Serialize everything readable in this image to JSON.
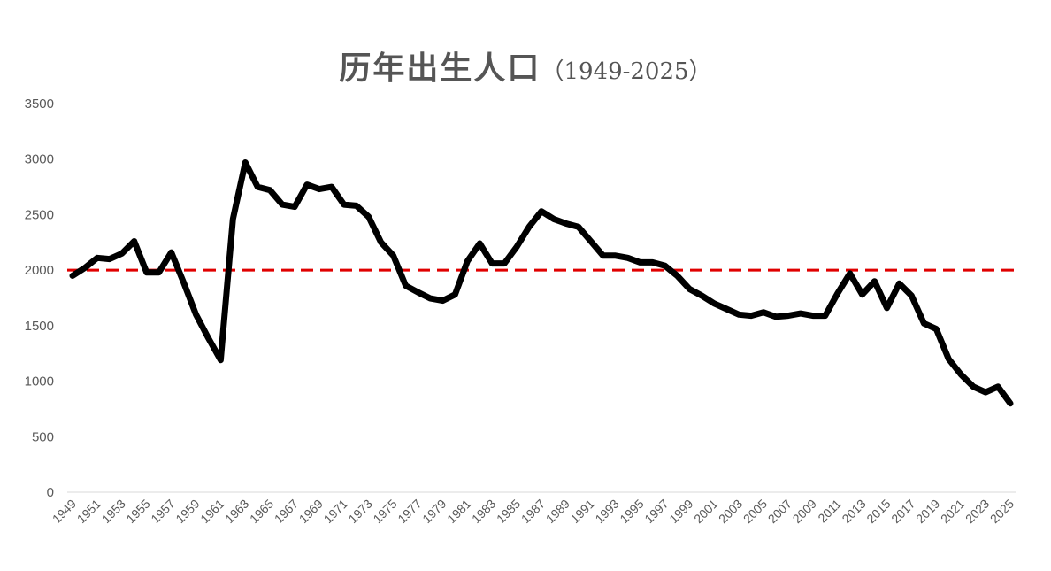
{
  "chart_data": {
    "type": "line",
    "title": "历年出生人口",
    "subtitle": "（1949-2025）",
    "xlabel": "",
    "ylabel": "",
    "ylim": [
      0,
      3500
    ],
    "yticks": [
      0,
      500,
      1000,
      1500,
      2000,
      2500,
      3000,
      3500
    ],
    "xticks": [
      "1949",
      "1951",
      "1953",
      "1955",
      "1957",
      "1959",
      "1961",
      "1963",
      "1965",
      "1967",
      "1969",
      "1971",
      "1973",
      "1975",
      "1977",
      "1979",
      "1981",
      "1983",
      "1985",
      "1987",
      "1989",
      "1991",
      "1993",
      "1995",
      "1997",
      "1999",
      "2001",
      "2003",
      "2005",
      "2007",
      "2009",
      "2011",
      "2013",
      "2015",
      "2017",
      "2019",
      "2021",
      "2023",
      "2025"
    ],
    "x": [
      1949,
      1950,
      1951,
      1952,
      1953,
      1954,
      1955,
      1956,
      1957,
      1958,
      1959,
      1960,
      1961,
      1962,
      1963,
      1964,
      1965,
      1966,
      1967,
      1968,
      1969,
      1970,
      1971,
      1972,
      1973,
      1974,
      1975,
      1976,
      1977,
      1978,
      1979,
      1980,
      1981,
      1982,
      1983,
      1984,
      1985,
      1986,
      1987,
      1988,
      1989,
      1990,
      1991,
      1992,
      1993,
      1994,
      1995,
      1996,
      1997,
      1998,
      1999,
      2000,
      2001,
      2002,
      2003,
      2004,
      2005,
      2006,
      2007,
      2008,
      2009,
      2010,
      2011,
      2012,
      2013,
      2014,
      2015,
      2016,
      2017,
      2018,
      2019,
      2020,
      2021,
      2022,
      2023,
      2024,
      2025
    ],
    "series": [
      {
        "values": [
          1950,
          2020,
          2110,
          2100,
          2150,
          2260,
          1980,
          1980,
          2160,
          1890,
          1600,
          1390,
          1190,
          2460,
          2970,
          2750,
          2720,
          2590,
          2570,
          2770,
          2730,
          2750,
          2590,
          2580,
          2480,
          2250,
          2130,
          1860,
          1800,
          1745,
          1725,
          1780,
          2080,
          2240,
          2060,
          2060,
          2210,
          2390,
          2530,
          2460,
          2420,
          2390,
          2260,
          2130,
          2130,
          2110,
          2070,
          2070,
          2040,
          1950,
          1830,
          1770,
          1700,
          1650,
          1600,
          1590,
          1620,
          1580,
          1590,
          1610,
          1590,
          1590,
          1790,
          1970,
          1780,
          1900,
          1660,
          1880,
          1770,
          1520,
          1470,
          1200,
          1060,
          950,
          900,
          950,
          800
        ]
      }
    ],
    "reference_line": {
      "value": 2000,
      "color": "#e00000",
      "style": "dashed"
    },
    "line_color": "#000000",
    "grid": false,
    "legend": "none"
  }
}
